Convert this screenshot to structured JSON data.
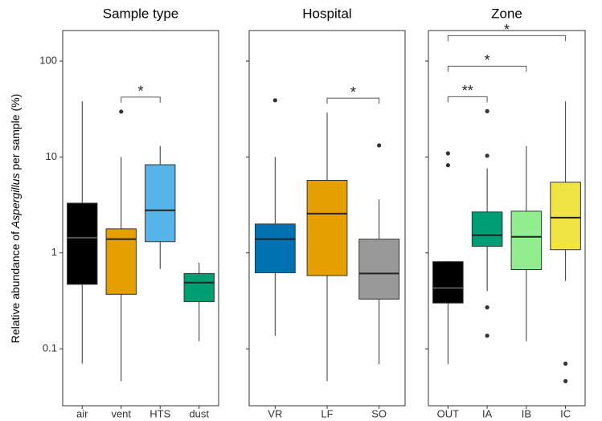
{
  "chart_data": [
    {
      "type": "box",
      "title": "Sample type",
      "log": true,
      "ytick_labels": true,
      "ylabel": [
        "Relative abundance of ",
        "Aspergillus",
        " per sample (%)"
      ],
      "ylim": [
        0.0255,
        208
      ],
      "yticks": [
        0.1,
        1,
        10,
        100
      ],
      "categories": [
        "air",
        "vent",
        "HTS",
        "dust"
      ],
      "colors": [
        "#000000",
        "#e69f00",
        "#56b4e9",
        "#009e73"
      ],
      "boxes": [
        {
          "min": 0.07,
          "q1": 0.47,
          "median": 1.44,
          "q3": 3.3,
          "max": 38,
          "outliers": []
        },
        {
          "min": 0.046,
          "q1": 0.37,
          "median": 1.39,
          "q3": 1.78,
          "max": 10,
          "outliers": [
            29.7
          ]
        },
        {
          "min": 0.68,
          "q1": 1.31,
          "median": 2.78,
          "q3": 8.3,
          "max": 13,
          "outliers": []
        },
        {
          "min": 0.12,
          "q1": 0.31,
          "median": 0.49,
          "q3": 0.61,
          "max": 0.79,
          "outliers": []
        }
      ],
      "annotations": [
        {
          "label": "*",
          "from": 1,
          "to": 2
        }
      ]
    },
    {
      "type": "box",
      "title": "Hospital",
      "log": true,
      "ytick_labels": false,
      "ylim": [
        0.0255,
        208
      ],
      "yticks": [
        0.1,
        1,
        10,
        100
      ],
      "categories": [
        "VR",
        "LF",
        "SO"
      ],
      "colors": [
        "#0072b2",
        "#e69f00",
        "#999999"
      ],
      "boxes": [
        {
          "min": 0.137,
          "q1": 0.62,
          "median": 1.39,
          "q3": 2.0,
          "max": 10,
          "outliers": [
            39
          ]
        },
        {
          "min": 0.046,
          "q1": 0.58,
          "median": 2.57,
          "q3": 5.7,
          "max": 29,
          "outliers": []
        },
        {
          "min": 0.069,
          "q1": 0.33,
          "median": 0.61,
          "q3": 1.39,
          "max": 3.6,
          "outliers": [
            13.2
          ]
        }
      ],
      "annotations": [
        {
          "label": "*",
          "from": 1,
          "to": 2
        }
      ]
    },
    {
      "type": "box",
      "title": "Zone",
      "log": true,
      "ytick_labels": false,
      "ylim": [
        0.0255,
        208
      ],
      "yticks": [
        0.1,
        1,
        10,
        100
      ],
      "categories": [
        "OUT",
        "IA",
        "IB",
        "IC"
      ],
      "colors": [
        "#000000",
        "#009e73",
        "#90ee90",
        "#f0e442"
      ],
      "boxes": [
        {
          "min": 0.069,
          "q1": 0.3,
          "median": 0.43,
          "q3": 0.81,
          "max": 0.82,
          "outliers": [
            10.9,
            8.2
          ]
        },
        {
          "min": 0.4,
          "q1": 1.17,
          "median": 1.53,
          "q3": 2.67,
          "max": 7.6,
          "outliers": [
            30,
            10.3,
            0.27,
            0.137
          ]
        },
        {
          "min": 0.12,
          "q1": 0.67,
          "median": 1.47,
          "q3": 2.72,
          "max": 13,
          "outliers": []
        },
        {
          "min": 0.51,
          "q1": 1.08,
          "median": 2.33,
          "q3": 5.45,
          "max": 38,
          "outliers": [
            0.07,
            0.046
          ]
        }
      ],
      "annotations": [
        {
          "label": "**",
          "from": 0,
          "to": 1
        },
        {
          "label": "*",
          "from": 0,
          "to": 2
        },
        {
          "label": "*",
          "from": 0,
          "to": 3
        }
      ]
    }
  ]
}
